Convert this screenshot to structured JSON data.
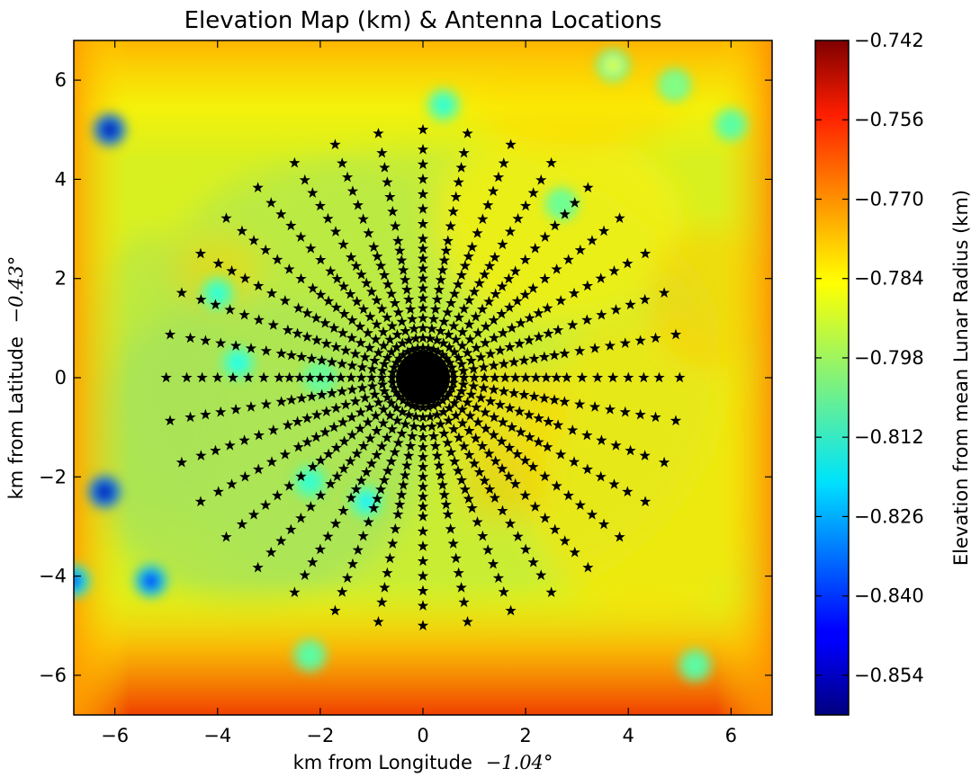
{
  "chart_data": {
    "type": "heatmap",
    "title": "Elevation Map (km) & Antenna Locations",
    "xlabel_text": "km from Longitude",
    "xlabel_value": "−1.04°",
    "ylabel_text": "km from Latitude",
    "ylabel_value": "−0.43°",
    "xlim": [
      -6.8,
      6.8
    ],
    "ylim": [
      -6.8,
      6.8
    ],
    "x_ticks": [
      -6,
      -4,
      -2,
      0,
      2,
      4,
      6
    ],
    "y_ticks": [
      -6,
      -4,
      -2,
      0,
      2,
      4,
      6
    ],
    "x_tick_labels": [
      "−6",
      "−4",
      "−2",
      "0",
      "2",
      "4",
      "6"
    ],
    "y_tick_labels": [
      "−6",
      "−4",
      "−2",
      "0",
      "2",
      "4",
      "6"
    ],
    "colorbar": {
      "label": "Elevation from mean Lunar Radius (km)",
      "min": -0.861,
      "max": -0.742,
      "ticks": [
        -0.742,
        -0.756,
        -0.77,
        -0.784,
        -0.798,
        -0.812,
        -0.826,
        -0.84,
        -0.854
      ],
      "tick_labels": [
        "−0.742",
        "−0.756",
        "−0.770",
        "−0.784",
        "−0.798",
        "−0.812",
        "−0.826",
        "−0.840",
        "−0.854"
      ],
      "colormap": "jet"
    },
    "heatmap_summary": {
      "background_level": -0.786,
      "edge_band_level": -0.766,
      "features": [
        {
          "x": -6.1,
          "y": 5.0,
          "value": -0.855
        },
        {
          "x": -6.2,
          "y": -2.3,
          "value": -0.855
        },
        {
          "x": -5.3,
          "y": -4.1,
          "value": -0.845
        },
        {
          "x": -6.8,
          "y": -4.1,
          "value": -0.84
        },
        {
          "x": 0.4,
          "y": 5.5,
          "value": -0.812
        },
        {
          "x": 6.0,
          "y": 5.1,
          "value": -0.806
        },
        {
          "x": 4.9,
          "y": 5.9,
          "value": -0.8
        },
        {
          "x": -4.0,
          "y": 1.7,
          "value": -0.812
        },
        {
          "x": -3.6,
          "y": 0.3,
          "value": -0.815
        },
        {
          "x": -2.2,
          "y": -2.1,
          "value": -0.812
        },
        {
          "x": -1.1,
          "y": -2.5,
          "value": -0.818
        },
        {
          "x": -2.0,
          "y": 0.0,
          "value": -0.803
        },
        {
          "x": -2.2,
          "y": -5.6,
          "value": -0.806
        },
        {
          "x": 5.3,
          "y": -5.8,
          "value": -0.806
        },
        {
          "x": 2.7,
          "y": 3.5,
          "value": -0.803
        },
        {
          "x": 3.7,
          "y": 6.3,
          "value": -0.79
        }
      ]
    },
    "antennas": {
      "marker": "star",
      "color": "#000000",
      "layout": "radial",
      "arms": 36,
      "radii_km": [
        0.2,
        0.4,
        0.6,
        0.8,
        1.0,
        1.2,
        1.4,
        1.6,
        1.8,
        2.0,
        2.2,
        2.4,
        2.6,
        2.8,
        3.1,
        3.4,
        3.7,
        4.0,
        4.3,
        4.6,
        5.0
      ],
      "center": [
        0,
        0
      ]
    }
  }
}
